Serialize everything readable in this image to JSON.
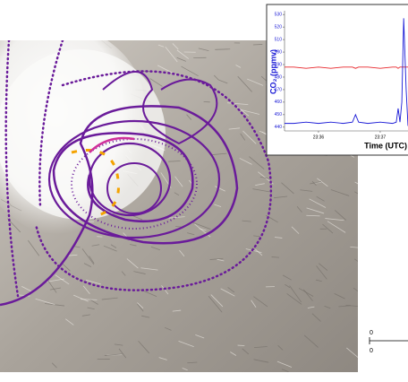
{
  "chart_data": {
    "type": "line",
    "y_label": "CO₂ (ppmv)",
    "x_label": "Time (UTC)",
    "x": [
      1415.45,
      1415.6,
      1415.8,
      1416.0,
      1416.2,
      1416.4,
      1416.55,
      1416.6,
      1416.65,
      1416.8,
      1417.0,
      1417.2,
      1417.26,
      1417.29,
      1417.32,
      1417.35,
      1417.38,
      1417.42,
      1417.45
    ],
    "series": [
      {
        "name": "red",
        "color": "#e8262b",
        "values": [
          488,
          488,
          487,
          488,
          487,
          488,
          488,
          487,
          488,
          488,
          487,
          488,
          488,
          487,
          488,
          488,
          488,
          488,
          488
        ]
      },
      {
        "name": "blue",
        "color": "#1a1ad6",
        "values": [
          443,
          443,
          444,
          443,
          444,
          443,
          444,
          450,
          444,
          443,
          444,
          443,
          444,
          455,
          444,
          460,
          527,
          470,
          441
        ]
      }
    ],
    "xlim": [
      1415.45,
      1417.45
    ],
    "xticks": [
      {
        "value": 1416,
        "label": "23:36"
      },
      {
        "value": 1417,
        "label": "23:37"
      }
    ],
    "ylim": [
      437,
      533
    ],
    "yticks": [
      440,
      450,
      460,
      470,
      480,
      490,
      500,
      510,
      520,
      530
    ]
  },
  "map": {
    "scale_bar": [
      "0",
      "0"
    ]
  }
}
